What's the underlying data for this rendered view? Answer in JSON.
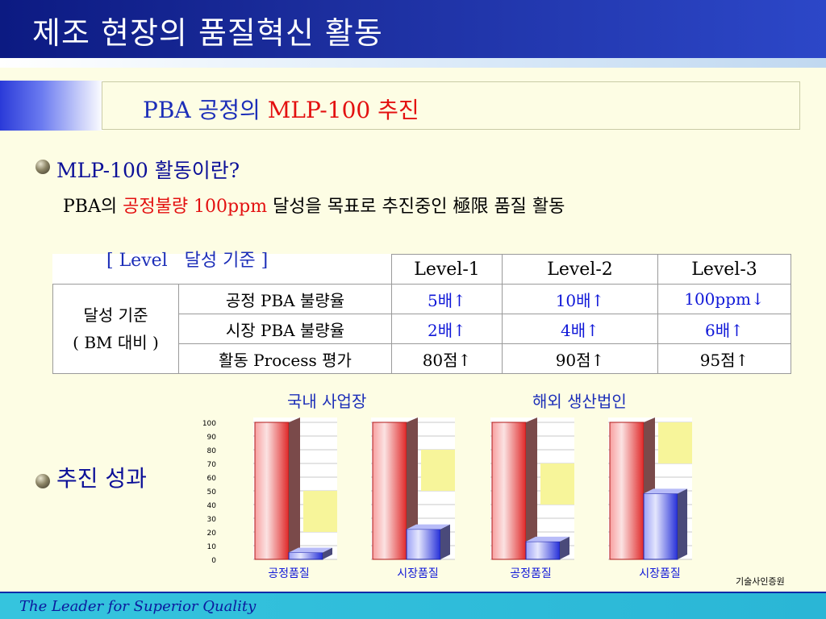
{
  "slide_title": "제조 현장의 품질혁신 활동",
  "section": {
    "title_prefix": "PBA 공정의 ",
    "title_highlight": "MLP-100 추진"
  },
  "mlp": {
    "heading": "MLP-100 활동이란?",
    "desc_prefix": "PBA의 ",
    "desc_highlight": "공정불량 100ppm",
    "desc_suffix": " 달성을 목표로 추진중인 極限 품질 활동"
  },
  "level_table": {
    "caption": "[ Level   달성 기준 ]",
    "headers": [
      "Level-1",
      "Level-2",
      "Level-3"
    ],
    "row_group_label_1": "달성 기준",
    "row_group_label_2": "( BM 대비 )",
    "rows": [
      {
        "metric": "공정 PBA 불량율",
        "l1": "5배↑",
        "l2": "10배↑",
        "l3": "100ppm↓"
      },
      {
        "metric": "시장 PBA 불량율",
        "l1": "2배↑",
        "l2": "4배↑",
        "l3": "6배↑"
      },
      {
        "metric": "활동 Process 평가",
        "l1": "80점↑",
        "l2": "90점↑",
        "l3": "95점↑"
      }
    ]
  },
  "results_label": "추진 성과",
  "chart_groups": {
    "domestic": "국내 사업장",
    "overseas": "해외 생산법인"
  },
  "chart_data": {
    "type": "bar",
    "ylim": [
      0,
      100
    ],
    "yticks": [
      0,
      10,
      20,
      30,
      40,
      50,
      60,
      70,
      80,
      90,
      100
    ],
    "groups": [
      {
        "group": "국내 사업장",
        "category": "공정품질",
        "before": 100,
        "after": 5,
        "target": 20
      },
      {
        "group": "국내 사업장",
        "category": "시장품질",
        "before": 100,
        "after": 22,
        "target": 50
      },
      {
        "group": "해외 생산법인",
        "category": "공정품질",
        "before": 100,
        "after": 13,
        "target": 40
      },
      {
        "group": "해외 생산법인",
        "category": "시장품질",
        "before": 100,
        "after": 48,
        "target": 70
      }
    ],
    "colors": {
      "before": "#f24a4a",
      "after": "#4a52f0",
      "target": "#f7f59a"
    }
  },
  "org_label": "기술사인증원",
  "footer": "The Leader for Superior Quality"
}
